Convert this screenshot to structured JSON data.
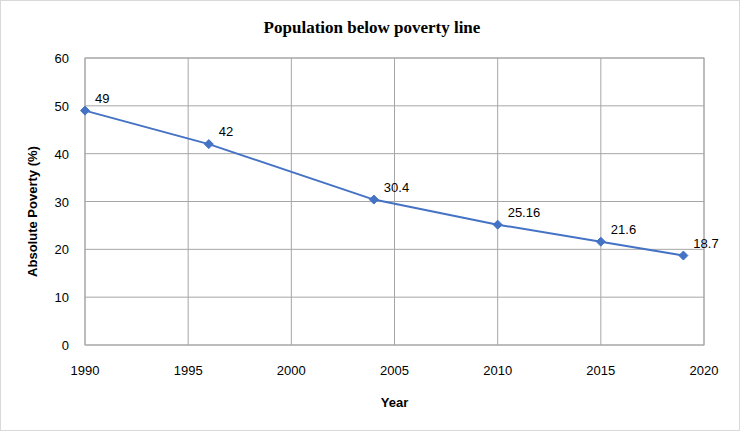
{
  "chart_data": {
    "type": "line",
    "title": "Population below poverty line",
    "x_label": "Year",
    "y_label": "Absolute Poverty (%)",
    "x": [
      1990,
      1996,
      2004,
      2010,
      2015,
      2019
    ],
    "values": [
      49,
      42,
      30.4,
      25.16,
      21.6,
      18.7
    ],
    "color": "#4472c4",
    "marker": "diamond",
    "xlim": [
      1990,
      2020
    ],
    "xticks": [
      1990,
      1995,
      2000,
      2005,
      2010,
      2015,
      2020
    ],
    "ylim": [
      0,
      60
    ],
    "yticks": [
      0,
      10,
      20,
      30,
      40,
      50,
      60
    ],
    "grid": true,
    "data_labels": true
  }
}
